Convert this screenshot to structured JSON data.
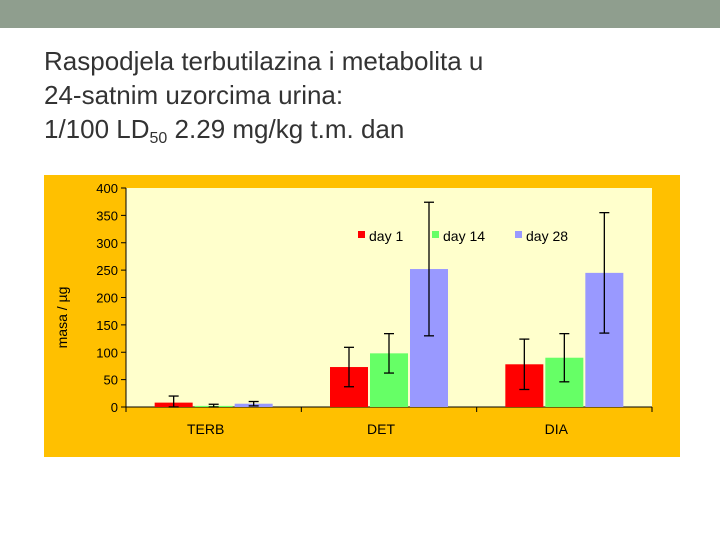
{
  "slide": {
    "title_line1": "Raspodjela terbutilazina i metabolita u",
    "title_line2": "24-satnim uzorcima urina:",
    "title_line3_pre": "1/100 LD",
    "title_line3_sub": "50",
    "title_line3_post": " 2.29 mg/kg t.m. dan"
  },
  "colors": {
    "header_bar": "#8f9e8e",
    "chart_background": "#ffc000",
    "day1": "#ff0000",
    "day14": "#66ff66",
    "day28": "#9999ff"
  },
  "chart_data": {
    "type": "bar",
    "categories": [
      "TERB",
      "DET",
      "DIA"
    ],
    "ylabel": "masa / µg",
    "ylim": [
      0,
      400
    ],
    "yticks": [
      "0",
      "50",
      "100",
      "150",
      "200",
      "250",
      "300",
      "350",
      "400"
    ],
    "grid": false,
    "legend_position": "top-right",
    "series": [
      {
        "name": "day 1",
        "values": [
          8,
          73,
          78
        ],
        "error": [
          12,
          36,
          46
        ]
      },
      {
        "name": "day 14",
        "values": [
          2,
          98,
          90
        ],
        "error": [
          3,
          36,
          44
        ]
      },
      {
        "name": "day 28",
        "values": [
          6,
          252,
          245
        ],
        "error": [
          4,
          122,
          110
        ]
      }
    ]
  }
}
